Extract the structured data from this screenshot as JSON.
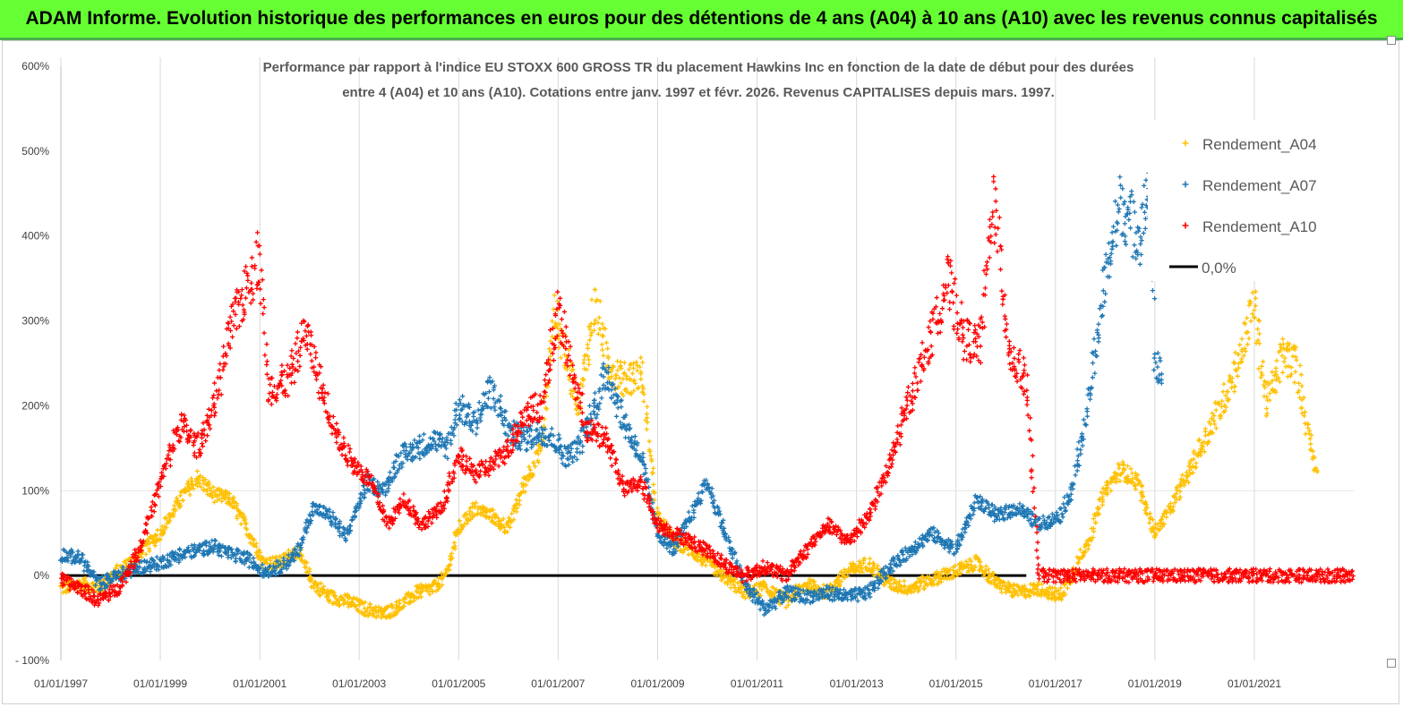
{
  "header": {
    "title": "ADAM Informe. Evolution historique des performances en euros pour des détentions de 4 ans (A04) à 10 ans (A10) avec les revenus connus capitalisés"
  },
  "chart_data": {
    "type": "scatter",
    "title_line1": "Performance par rapport à l'indice EU STOXX 600 GROSS TR  du placement Hawkins Inc en fonction de la date de début pour des durées",
    "title_line2": "entre 4 (A04) et 10 ans (A10).  Cotations entre janv. 1997 et févr. 2026. Revenus CAPITALISES depuis mars. 1997.",
    "xlabel": "",
    "ylabel": "",
    "x_range": [
      "1997-01-01",
      "2023-01-01"
    ],
    "ylim": [
      -100,
      600
    ],
    "y_ticks": [
      "600%",
      "500%",
      "400%",
      "300%",
      "200%",
      "100%",
      "0%",
      "- 100%"
    ],
    "x_ticks": [
      "01/01/1997",
      "01/01/1999",
      "01/01/2001",
      "01/01/2003",
      "01/01/2005",
      "01/01/2007",
      "01/01/2009",
      "01/01/2011",
      "01/01/2013",
      "01/01/2015",
      "01/01/2017",
      "01/01/2019",
      "01/01/2021"
    ],
    "grid": "vertical",
    "legend_position": "top-right",
    "series": [
      {
        "name": "Rendement_A04",
        "color": "#ffc000",
        "marker": "plus",
        "points": [
          [
            "1997-01-01",
            -15
          ],
          [
            "1997-06-01",
            -10
          ],
          [
            "1997-10-01",
            -15
          ],
          [
            "1998-03-01",
            5
          ],
          [
            "1998-08-01",
            25
          ],
          [
            "1999-01-01",
            50
          ],
          [
            "1999-06-01",
            90
          ],
          [
            "1999-10-01",
            115
          ],
          [
            "2000-02-01",
            95
          ],
          [
            "2000-06-01",
            90
          ],
          [
            "2000-10-01",
            55
          ],
          [
            "2001-02-01",
            15
          ],
          [
            "2001-06-01",
            15
          ],
          [
            "2001-10-01",
            30
          ],
          [
            "2002-02-01",
            -10
          ],
          [
            "2002-06-01",
            -25
          ],
          [
            "2002-10-01",
            -30
          ],
          [
            "2003-03-01",
            -40
          ],
          [
            "2003-07-01",
            -45
          ],
          [
            "2003-11-01",
            -35
          ],
          [
            "2004-03-01",
            -20
          ],
          [
            "2004-07-01",
            -15
          ],
          [
            "2004-10-01",
            0
          ],
          [
            "2005-01-01",
            55
          ],
          [
            "2005-05-01",
            80
          ],
          [
            "2005-09-01",
            70
          ],
          [
            "2006-01-01",
            55
          ],
          [
            "2006-05-01",
            110
          ],
          [
            "2006-09-01",
            150
          ],
          [
            "2006-12-01",
            310
          ],
          [
            "2007-03-01",
            260
          ],
          [
            "2007-06-01",
            200
          ],
          [
            "2007-10-01",
            320
          ],
          [
            "2008-01-01",
            250
          ],
          [
            "2008-05-01",
            230
          ],
          [
            "2008-09-01",
            240
          ],
          [
            "2009-01-01",
            70
          ],
          [
            "2009-05-01",
            40
          ],
          [
            "2009-09-01",
            30
          ],
          [
            "2010-01-01",
            15
          ],
          [
            "2010-06-01",
            -5
          ],
          [
            "2010-10-01",
            -20
          ],
          [
            "2011-03-01",
            -15
          ],
          [
            "2011-08-01",
            -30
          ],
          [
            "2012-01-01",
            -10
          ],
          [
            "2012-06-01",
            -20
          ],
          [
            "2012-11-01",
            5
          ],
          [
            "2013-04-01",
            15
          ],
          [
            "2013-09-01",
            -10
          ],
          [
            "2014-02-01",
            -15
          ],
          [
            "2014-07-01",
            -5
          ],
          [
            "2015-01-01",
            5
          ],
          [
            "2015-06-01",
            15
          ],
          [
            "2015-11-01",
            -10
          ],
          [
            "2016-04-01",
            -20
          ],
          [
            "2016-09-01",
            -15
          ],
          [
            "2017-02-01",
            -25
          ],
          [
            "2017-05-01",
            0
          ],
          [
            "2017-09-01",
            40
          ],
          [
            "2018-01-01",
            100
          ],
          [
            "2018-05-01",
            125
          ],
          [
            "2018-09-01",
            110
          ],
          [
            "2019-01-01",
            50
          ],
          [
            "2019-05-01",
            80
          ],
          [
            "2019-09-01",
            120
          ],
          [
            "2020-01-01",
            160
          ],
          [
            "2020-05-01",
            200
          ],
          [
            "2020-09-01",
            250
          ],
          [
            "2021-01-01",
            320
          ],
          [
            "2021-04-01",
            200
          ],
          [
            "2021-08-01",
            260
          ],
          [
            "2021-11-01",
            250
          ],
          [
            "2022-02-01",
            170
          ],
          [
            "2022-04-01",
            120
          ]
        ]
      },
      {
        "name": "Rendement_A07",
        "color": "#1f77b4",
        "marker": "plus",
        "points": [
          [
            "1997-01-01",
            25
          ],
          [
            "1997-06-01",
            20
          ],
          [
            "1997-10-01",
            -10
          ],
          [
            "1998-03-01",
            0
          ],
          [
            "1998-08-01",
            10
          ],
          [
            "1999-01-01",
            15
          ],
          [
            "1999-06-01",
            25
          ],
          [
            "1999-10-01",
            30
          ],
          [
            "2000-02-01",
            35
          ],
          [
            "2000-06-01",
            25
          ],
          [
            "2000-10-01",
            20
          ],
          [
            "2001-02-01",
            5
          ],
          [
            "2001-06-01",
            10
          ],
          [
            "2001-10-01",
            25
          ],
          [
            "2002-02-01",
            80
          ],
          [
            "2002-06-01",
            70
          ],
          [
            "2002-10-01",
            45
          ],
          [
            "2003-03-01",
            110
          ],
          [
            "2003-07-01",
            100
          ],
          [
            "2003-11-01",
            140
          ],
          [
            "2004-03-01",
            150
          ],
          [
            "2004-07-01",
            160
          ],
          [
            "2004-10-01",
            150
          ],
          [
            "2005-01-01",
            200
          ],
          [
            "2005-05-01",
            180
          ],
          [
            "2005-09-01",
            220
          ],
          [
            "2006-01-01",
            170
          ],
          [
            "2006-05-01",
            160
          ],
          [
            "2006-09-01",
            170
          ],
          [
            "2006-12-01",
            160
          ],
          [
            "2007-03-01",
            140
          ],
          [
            "2007-06-01",
            150
          ],
          [
            "2007-10-01",
            200
          ],
          [
            "2008-01-01",
            240
          ],
          [
            "2008-05-01",
            180
          ],
          [
            "2008-09-01",
            140
          ],
          [
            "2009-01-01",
            50
          ],
          [
            "2009-05-01",
            30
          ],
          [
            "2009-09-01",
            70
          ],
          [
            "2010-01-01",
            110
          ],
          [
            "2010-06-01",
            40
          ],
          [
            "2010-10-01",
            -10
          ],
          [
            "2011-03-01",
            -40
          ],
          [
            "2011-08-01",
            -20
          ],
          [
            "2012-01-01",
            -25
          ],
          [
            "2012-06-01",
            -20
          ],
          [
            "2012-11-01",
            -25
          ],
          [
            "2013-04-01",
            -20
          ],
          [
            "2013-09-01",
            10
          ],
          [
            "2014-02-01",
            30
          ],
          [
            "2014-07-01",
            50
          ],
          [
            "2015-01-01",
            30
          ],
          [
            "2015-06-01",
            90
          ],
          [
            "2015-11-01",
            70
          ],
          [
            "2016-04-01",
            80
          ],
          [
            "2016-09-01",
            60
          ],
          [
            "2017-02-01",
            70
          ],
          [
            "2017-05-01",
            100
          ],
          [
            "2017-09-01",
            200
          ],
          [
            "2018-01-01",
            350
          ],
          [
            "2018-05-01",
            440
          ],
          [
            "2018-09-01",
            400
          ],
          [
            "2018-12-01",
            460
          ],
          [
            "2019-01-01",
            250
          ],
          [
            "2019-03-01",
            240
          ]
        ]
      },
      {
        "name": "Rendement_A10",
        "color": "#ff0000",
        "marker": "plus",
        "points": [
          [
            "1997-01-01",
            -5
          ],
          [
            "1997-06-01",
            -15
          ],
          [
            "1997-10-01",
            -30
          ],
          [
            "1998-03-01",
            -15
          ],
          [
            "1998-08-01",
            30
          ],
          [
            "1999-01-01",
            110
          ],
          [
            "1999-06-01",
            180
          ],
          [
            "1999-10-01",
            150
          ],
          [
            "2000-02-01",
            200
          ],
          [
            "2000-06-01",
            290
          ],
          [
            "2000-10-01",
            340
          ],
          [
            "2001-01-01",
            380
          ],
          [
            "2001-03-01",
            220
          ],
          [
            "2001-08-01",
            230
          ],
          [
            "2001-12-01",
            290
          ],
          [
            "2002-04-01",
            220
          ],
          [
            "2002-08-01",
            160
          ],
          [
            "2002-12-01",
            130
          ],
          [
            "2003-04-01",
            110
          ],
          [
            "2003-08-01",
            60
          ],
          [
            "2003-12-01",
            90
          ],
          [
            "2004-04-01",
            60
          ],
          [
            "2004-09-01",
            80
          ],
          [
            "2005-01-01",
            140
          ],
          [
            "2005-05-01",
            120
          ],
          [
            "2005-09-01",
            130
          ],
          [
            "2006-01-01",
            150
          ],
          [
            "2006-05-01",
            190
          ],
          [
            "2006-09-01",
            200
          ],
          [
            "2007-01-01",
            310
          ],
          [
            "2007-04-01",
            250
          ],
          [
            "2007-08-01",
            170
          ],
          [
            "2008-01-01",
            160
          ],
          [
            "2008-05-01",
            100
          ],
          [
            "2008-09-01",
            110
          ],
          [
            "2009-01-01",
            60
          ],
          [
            "2009-05-01",
            50
          ],
          [
            "2009-09-01",
            40
          ],
          [
            "2010-01-01",
            30
          ],
          [
            "2010-06-01",
            10
          ],
          [
            "2010-10-01",
            0
          ],
          [
            "2011-03-01",
            10
          ],
          [
            "2011-08-01",
            0
          ],
          [
            "2012-01-01",
            30
          ],
          [
            "2012-06-01",
            60
          ],
          [
            "2012-11-01",
            40
          ],
          [
            "2013-04-01",
            70
          ],
          [
            "2013-09-01",
            130
          ],
          [
            "2014-02-01",
            210
          ],
          [
            "2014-07-01",
            280
          ],
          [
            "2014-11-01",
            350
          ],
          [
            "2015-03-01",
            280
          ],
          [
            "2015-07-01",
            270
          ],
          [
            "2015-10-01",
            450
          ],
          [
            "2016-02-01",
            260
          ],
          [
            "2016-06-01",
            230
          ],
          [
            "2016-09-01",
            0
          ],
          [
            "2018-01-01",
            0
          ],
          [
            "2020-01-01",
            0
          ],
          [
            "2022-12-31",
            0
          ]
        ]
      },
      {
        "name": "0,0%",
        "color": "#000000",
        "marker": "line",
        "points": [
          [
            "1997-01-01",
            0
          ],
          [
            "2016-06-01",
            0
          ]
        ]
      }
    ]
  }
}
